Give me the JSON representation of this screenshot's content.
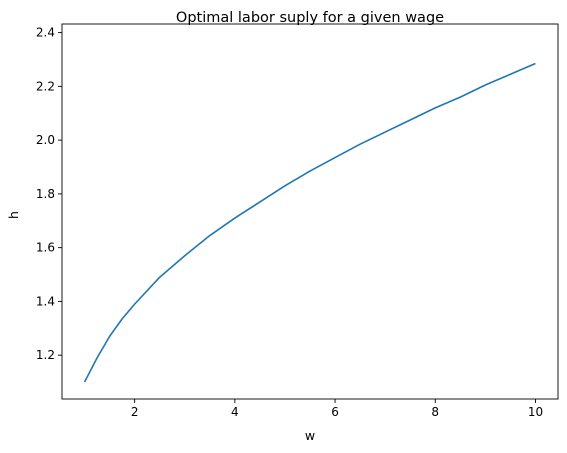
{
  "chart_data": {
    "type": "line",
    "title": "Optimal labor suply for a given wage",
    "xlabel": "w",
    "ylabel": "h",
    "xlim": [
      0.55,
      10.45
    ],
    "ylim": [
      1.037,
      2.432
    ],
    "xticks": [
      2,
      4,
      6,
      8,
      10
    ],
    "yticks": [
      1.2,
      1.4,
      1.6,
      1.8,
      2.0,
      2.2,
      2.4
    ],
    "xtick_labels": [
      "2",
      "4",
      "6",
      "8",
      "10"
    ],
    "ytick_labels": [
      "1.2",
      "1.4",
      "1.6",
      "1.8",
      "2.0",
      "2.2",
      "2.4"
    ],
    "grid": false,
    "series": [
      {
        "color": "#1f77b4",
        "x": [
          1.0,
          1.25,
          1.5,
          1.75,
          2.0,
          2.5,
          3.0,
          3.5,
          4.0,
          4.5,
          5.0,
          5.5,
          6.0,
          6.5,
          7.0,
          7.5,
          8.0,
          8.5,
          9.0,
          9.5,
          10.0
        ],
        "y": [
          1.1,
          1.19,
          1.27,
          1.335,
          1.39,
          1.49,
          1.57,
          1.645,
          1.71,
          1.77,
          1.83,
          1.885,
          1.935,
          1.985,
          2.03,
          2.075,
          2.12,
          2.16,
          2.205,
          2.245,
          2.285
        ]
      }
    ]
  }
}
